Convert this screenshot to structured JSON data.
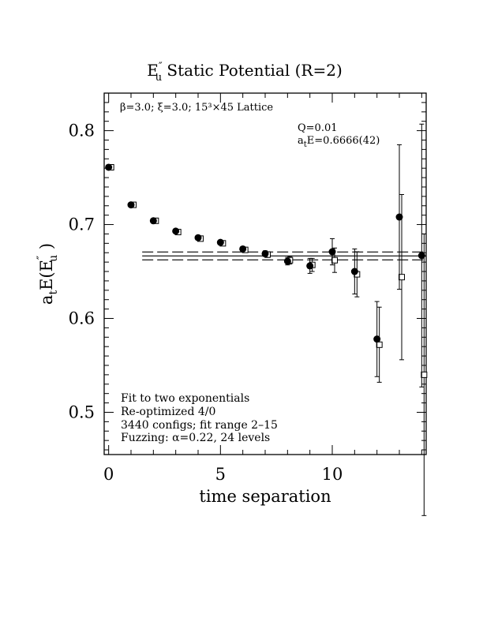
{
  "chart_data": {
    "type": "scatter",
    "title": "E″u  Static Potential (R=2)",
    "title_parts": {
      "prefix": "E",
      "prime": "″",
      "sub": "u",
      "rest": "  Static Potential (R=2)"
    },
    "lattice_label": "β=3.0; ξ=3.0; 15³×45 Lattice",
    "fit_info": {
      "q": "Q=0.01",
      "energy": "aE=0.6666(42)",
      "energy_parts": {
        "a": "a",
        "sub": "t",
        "rest": "E=0.6666(42)"
      }
    },
    "notes": [
      "Fit to two exponentials",
      "Re-optimized 4/0",
      "3440 configs; fit range 2–15",
      "Fuzzing: α=0.22, 24 levels"
    ],
    "xlabel": "time separation",
    "ylabel": "aE(E″u )",
    "ylabel_parts": {
      "a": "a",
      "sub1": "t",
      "mid": "E(E",
      "prime": "″",
      "sub2": "u",
      "end": " )"
    },
    "xlim": [
      -0.2,
      14.2
    ],
    "ylim": [
      0.455,
      0.84
    ],
    "x_ticks": [
      0,
      5,
      10
    ],
    "x_tick_labels": [
      "0",
      "5",
      "10"
    ],
    "y_ticks": [
      0.5,
      0.6,
      0.7,
      0.8
    ],
    "y_tick_labels": [
      "0.5",
      "0.6",
      "0.7",
      "0.8"
    ],
    "series": [
      {
        "marker": "filled-circle",
        "x": [
          0,
          1,
          2,
          3,
          4,
          5,
          6,
          7,
          8,
          9,
          10,
          11,
          12,
          13,
          14
        ],
        "y": [
          0.761,
          0.721,
          0.704,
          0.693,
          0.686,
          0.681,
          0.674,
          0.669,
          0.661,
          0.656,
          0.671,
          0.65,
          0.578,
          0.708,
          0.667
        ],
        "err": [
          0.0015,
          0.0015,
          0.0015,
          0.0018,
          0.002,
          0.002,
          0.002,
          0.003,
          0.004,
          0.008,
          0.014,
          0.024,
          0.04,
          0.077,
          0.14
        ]
      },
      {
        "marker": "open-square",
        "x": [
          0,
          1,
          2,
          3,
          4,
          5,
          6,
          7,
          8,
          9,
          10,
          11,
          12,
          13,
          14
        ],
        "y": [
          0.761,
          0.721,
          0.704,
          0.692,
          0.685,
          0.68,
          0.673,
          0.668,
          0.662,
          0.657,
          0.662,
          0.647,
          0.572,
          0.644,
          0.54
        ],
        "err": [
          0.0015,
          0.0015,
          0.0015,
          0.0018,
          0.002,
          0.002,
          0.002,
          0.003,
          0.004,
          0.007,
          0.013,
          0.024,
          0.04,
          0.088,
          0.15
        ]
      }
    ],
    "fit_band": {
      "x_range": [
        1.5,
        15
      ],
      "center": 0.6666,
      "lower": 0.6624,
      "upper": 0.6708
    }
  }
}
